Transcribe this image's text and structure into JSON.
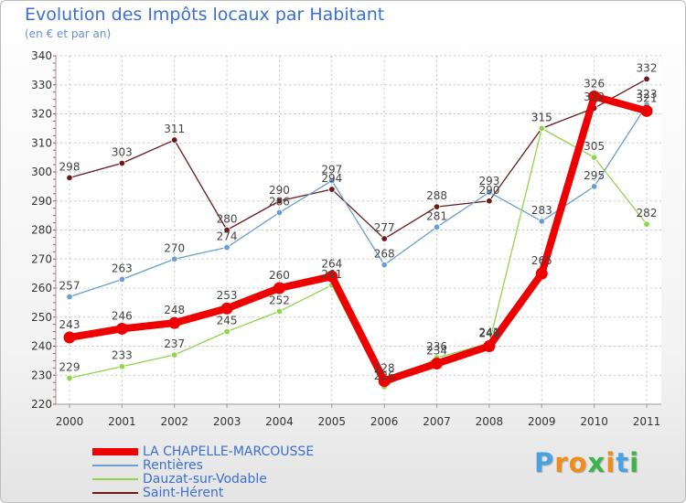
{
  "chart_data": {
    "type": "line",
    "title": "Evolution des Impôts locaux par Habitant",
    "subtitle": "(en € et par an)",
    "xlabel": "",
    "ylabel": "",
    "ylim": [
      220,
      340
    ],
    "yticks": [
      220,
      230,
      240,
      250,
      260,
      270,
      280,
      290,
      300,
      310,
      320,
      330,
      340
    ],
    "categories": [
      "2000",
      "2001",
      "2002",
      "2003",
      "2004",
      "2005",
      "2006",
      "2007",
      "2008",
      "2009",
      "2010",
      "2011"
    ],
    "series": [
      {
        "name": "Saint-Hérent",
        "color": "#6b1a1a",
        "values": [
          298,
          303,
          311,
          280,
          290,
          294,
          277,
          288,
          290,
          315,
          322,
          332
        ],
        "labels": [
          "298",
          "303",
          "311",
          "280",
          "290",
          "294",
          "277",
          "288",
          "290",
          "315",
          "322",
          "332"
        ]
      },
      {
        "name": "Rentières",
        "color": "#6a9fd4",
        "values": [
          257,
          263,
          270,
          274,
          286,
          297,
          268,
          281,
          293,
          283,
          295,
          323
        ],
        "labels": [
          "257",
          "263",
          "270",
          "274",
          "286",
          "297",
          "268",
          "281",
          "293",
          "283",
          "295",
          "323"
        ]
      },
      {
        "name": "Dauzat-sur-Vodable",
        "color": "#8fd64a",
        "values": [
          229,
          233,
          237,
          245,
          252,
          261,
          226,
          236,
          241,
          315,
          305,
          282
        ],
        "labels": [
          "229",
          "233",
          "237",
          "245",
          "252",
          "261",
          "226",
          "236",
          "241",
          "315",
          "305",
          "282"
        ]
      },
      {
        "name": "LA CHAPELLE-MARCOUSSE",
        "color": "#ee0000",
        "values": [
          243,
          246,
          248,
          253,
          260,
          264,
          228,
          234,
          240,
          265,
          326,
          321
        ],
        "labels": [
          "243",
          "246",
          "248",
          "253",
          "260",
          "264",
          "228",
          "234",
          "240",
          "265",
          "326",
          "321"
        ]
      }
    ],
    "legend": [
      "LA CHAPELLE-MARCOUSSE",
      "Rentières",
      "Dauzat-sur-Vodable",
      "Saint-Hérent"
    ],
    "legend_position": "bottom-left"
  },
  "logo": {
    "letters": [
      "P",
      "r",
      "o",
      "x",
      "i",
      "t",
      "i"
    ],
    "colors": [
      "#4aa3e0",
      "#f08c1a",
      "#f08c1a",
      "#3cb44b",
      "#f08c1a",
      "#4aa3e0",
      "#3cb44b"
    ]
  }
}
